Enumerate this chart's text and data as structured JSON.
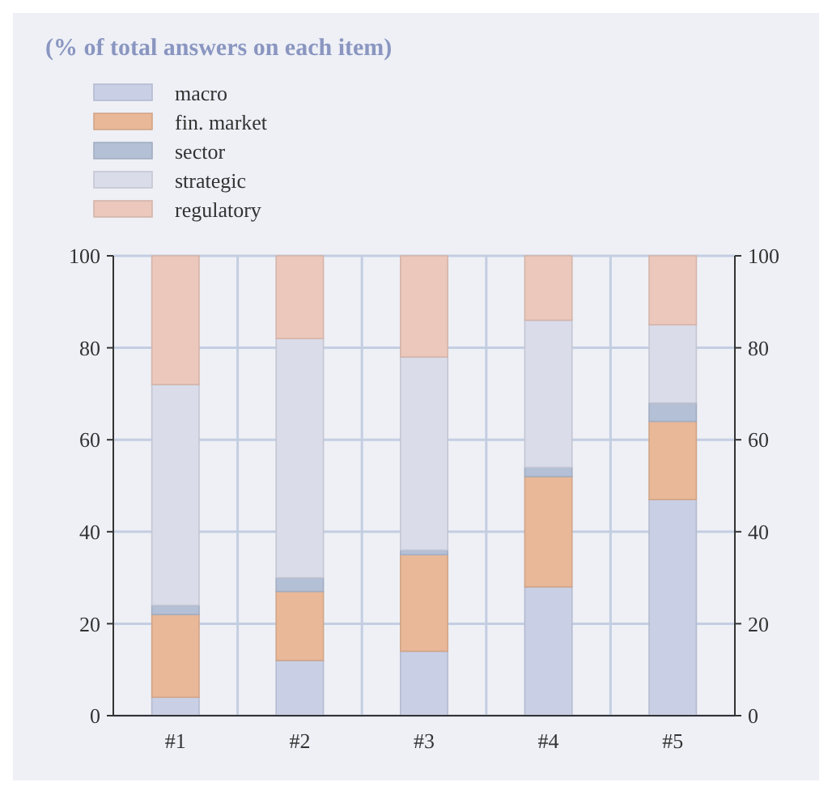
{
  "chart_data": {
    "type": "bar",
    "title": "(% of total answers on each item)",
    "categories": [
      "#1",
      "#2",
      "#3",
      "#4",
      "#5"
    ],
    "stacked": true,
    "series": [
      {
        "name": "macro",
        "color": "#c9d0e6",
        "values": [
          4,
          12,
          14,
          28,
          47
        ]
      },
      {
        "name": "fin. market",
        "color": "#e9b898",
        "values": [
          18,
          15,
          21,
          24,
          17
        ]
      },
      {
        "name": "sector",
        "color": "#b4c0d6",
        "values": [
          2,
          3,
          1,
          2,
          4
        ]
      },
      {
        "name": "strategic",
        "color": "#dadcea",
        "values": [
          48,
          52,
          42,
          32,
          17
        ]
      },
      {
        "name": "regulatory",
        "color": "#ecc8bc",
        "values": [
          28,
          18,
          22,
          14,
          15
        ]
      }
    ],
    "ylim": [
      0,
      100
    ],
    "yticks": [
      0,
      20,
      40,
      60,
      80,
      100
    ],
    "y2lim": [
      0,
      100
    ],
    "y2ticks": [
      0,
      20,
      40,
      60,
      80,
      100
    ],
    "grid": true,
    "legend": "top left"
  }
}
